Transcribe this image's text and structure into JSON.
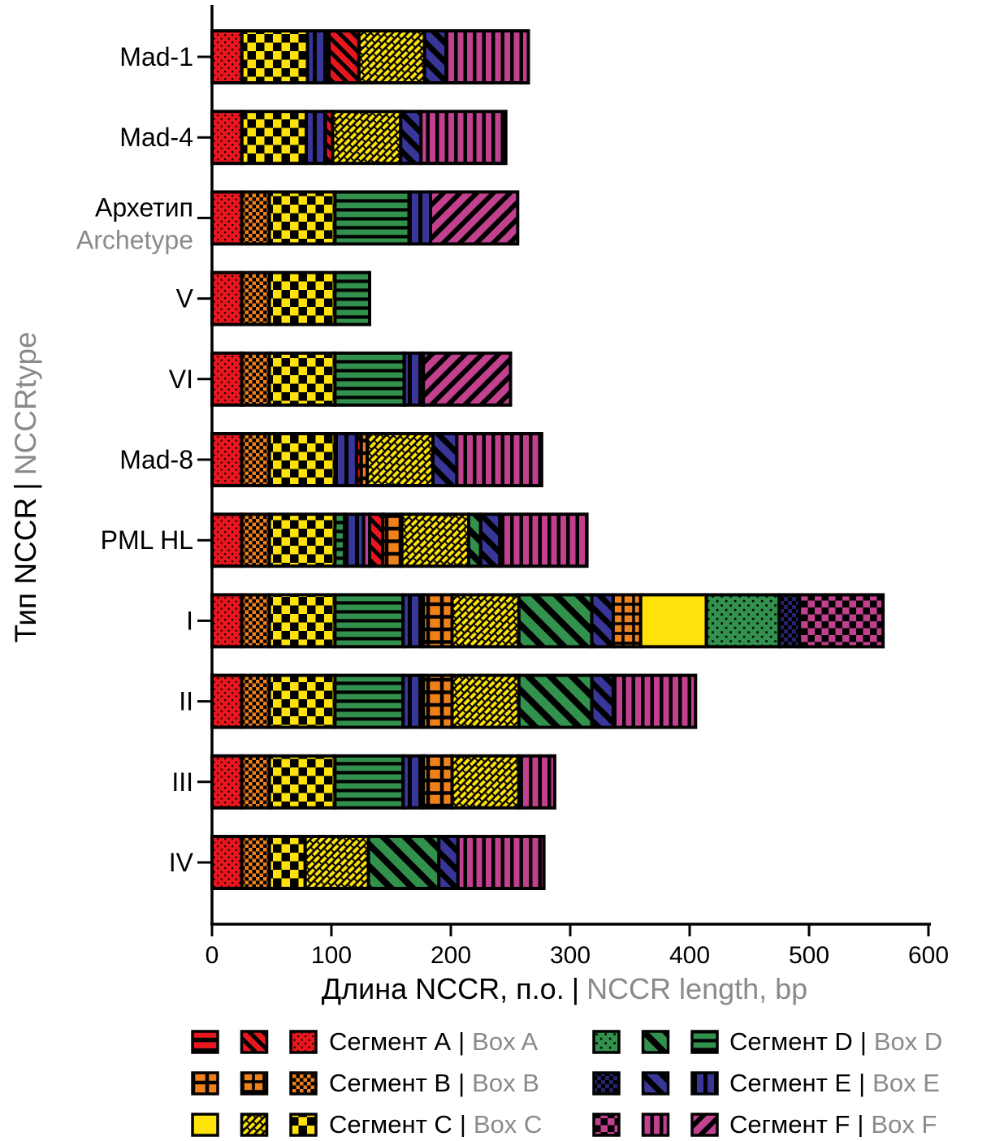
{
  "chart_data": {
    "type": "bar",
    "stacked": true,
    "orientation": "horizontal",
    "xlabel_ru": "Длина NCCR, п.о.",
    "xlabel_en": "NCCR length, bp",
    "ylabel_ru": "Тип NCCR",
    "ylabel_en": "NCCRtype",
    "sep": "|",
    "xlim": [
      0,
      600
    ],
    "xticks": [
      0,
      100,
      200,
      300,
      400,
      500,
      600
    ],
    "grid": false,
    "legend_position": "bottom",
    "boxes": {
      "A": {
        "label_ru": "Сегмент A",
        "label_en": "Box A",
        "color": "#e8161e",
        "legend_patterns": [
          "hstripes",
          "diag",
          "dots"
        ]
      },
      "B": {
        "label_ru": "Сегмент B",
        "label_en": "Box B",
        "color": "#f08019",
        "legend_patterns": [
          "grid",
          "grid2",
          "dense"
        ]
      },
      "C": {
        "label_ru": "Сегмент C",
        "label_en": "Box C",
        "color": "#ffe20a",
        "legend_patterns": [
          "plain",
          "bricks",
          "checker"
        ]
      },
      "D": {
        "label_ru": "Сегмент D",
        "label_en": "Box D",
        "color": "#33914e",
        "legend_patterns": [
          "dots",
          "diag",
          "hstripes"
        ]
      },
      "E": {
        "label_ru": "Сегмент E",
        "label_en": "Box E",
        "color": "#393699",
        "color_dark": "#23246b",
        "legend_patterns": [
          "checker",
          "diag",
          "vstripes"
        ]
      },
      "F": {
        "label_ru": "Сегмент F",
        "label_en": "Box F",
        "color": "#c2418f",
        "legend_patterns": [
          "checker",
          "vstripes",
          "diag"
        ]
      }
    },
    "rows": [
      {
        "label": "Mad-1",
        "total_bp": 265,
        "segments": [
          [
            "A",
            "dots",
            25
          ],
          [
            "C",
            "checker",
            55
          ],
          [
            "E",
            "vstripes",
            18
          ],
          [
            "A",
            "diag",
            25
          ],
          [
            "C",
            "bricks",
            55
          ],
          [
            "E",
            "diag",
            18
          ],
          [
            "F",
            "vstripes",
            69
          ]
        ]
      },
      {
        "label": "Mad-4",
        "total_bp": 246,
        "segments": [
          [
            "A",
            "dots",
            25
          ],
          [
            "C",
            "checker",
            54
          ],
          [
            "E",
            "vstripes",
            16
          ],
          [
            "A",
            "diag",
            6
          ],
          [
            "C",
            "bricks",
            57
          ],
          [
            "E",
            "diag",
            17
          ],
          [
            "F",
            "vstripes",
            71
          ]
        ]
      },
      {
        "label": "Архетип",
        "label_en": "Archetype",
        "total_bp": 256,
        "segments": [
          [
            "A",
            "dots",
            25
          ],
          [
            "B",
            "dense",
            23
          ],
          [
            "C",
            "checker",
            55
          ],
          [
            "D",
            "hstripes",
            62
          ],
          [
            "E",
            "vstripes",
            18
          ],
          [
            "F",
            "diag",
            73
          ]
        ]
      },
      {
        "label": "V",
        "total_bp": 132,
        "segments": [
          [
            "A",
            "dots",
            25
          ],
          [
            "B",
            "dense",
            23
          ],
          [
            "C",
            "checker",
            55
          ],
          [
            "D",
            "hstripes",
            29
          ]
        ]
      },
      {
        "label": "VI",
        "total_bp": 250,
        "segments": [
          [
            "A",
            "dots",
            25
          ],
          [
            "B",
            "dense",
            23
          ],
          [
            "C",
            "checker",
            55
          ],
          [
            "D",
            "hstripes",
            58
          ],
          [
            "E",
            "vstripes",
            16
          ],
          [
            "F",
            "diag",
            73
          ]
        ]
      },
      {
        "label": "Mad-8",
        "total_bp": 276,
        "segments": [
          [
            "A",
            "dots",
            25
          ],
          [
            "B",
            "dense",
            23
          ],
          [
            "C",
            "checker",
            55
          ],
          [
            "E",
            "vstripes",
            18
          ],
          [
            "A",
            "diag",
            4
          ],
          [
            "B",
            "grid",
            5
          ],
          [
            "C",
            "bricks",
            55
          ],
          [
            "E",
            "diag",
            20
          ],
          [
            "F",
            "vstripes",
            71
          ]
        ]
      },
      {
        "label": "PML HL",
        "total_bp": 314,
        "segments": [
          [
            "A",
            "dots",
            25
          ],
          [
            "B",
            "dense",
            23
          ],
          [
            "C",
            "checker",
            55
          ],
          [
            "D",
            "hstripes",
            8
          ],
          [
            "E",
            "vstripes",
            16
          ],
          [
            "F",
            "vstripes",
            5
          ],
          [
            "A",
            "diag",
            11
          ],
          [
            "B",
            "grid",
            16
          ],
          [
            "C",
            "bricks",
            56
          ],
          [
            "D",
            "diag",
            10
          ],
          [
            "E",
            "diag",
            16
          ],
          [
            "F",
            "vstripes",
            73
          ]
        ]
      },
      {
        "label": "I",
        "total_bp": 562,
        "segments": [
          [
            "A",
            "dots",
            25
          ],
          [
            "B",
            "dense",
            23
          ],
          [
            "C",
            "checker",
            55
          ],
          [
            "D",
            "hstripes",
            57
          ],
          [
            "E",
            "vstripes",
            17
          ],
          [
            "B",
            "grid",
            24
          ],
          [
            "C",
            "bricks",
            56
          ],
          [
            "D",
            "diag",
            61
          ],
          [
            "E",
            "diag",
            18
          ],
          [
            "B",
            "grid2",
            23
          ],
          [
            "C",
            "plain",
            55
          ],
          [
            "D",
            "dots",
            61
          ],
          [
            "E",
            "checker",
            17
          ],
          [
            "F",
            "checker",
            70
          ]
        ]
      },
      {
        "label": "II",
        "total_bp": 405,
        "segments": [
          [
            "A",
            "dots",
            25
          ],
          [
            "B",
            "dense",
            23
          ],
          [
            "C",
            "checker",
            55
          ],
          [
            "D",
            "hstripes",
            57
          ],
          [
            "E",
            "vstripes",
            17
          ],
          [
            "B",
            "grid",
            24
          ],
          [
            "C",
            "bricks",
            56
          ],
          [
            "D",
            "diag",
            61
          ],
          [
            "E",
            "diag",
            18
          ],
          [
            "F",
            "vstripes",
            69
          ]
        ]
      },
      {
        "label": "III",
        "total_bp": 287,
        "segments": [
          [
            "A",
            "dots",
            25
          ],
          [
            "B",
            "dense",
            23
          ],
          [
            "C",
            "checker",
            55
          ],
          [
            "D",
            "hstripes",
            57
          ],
          [
            "E",
            "vstripes",
            17
          ],
          [
            "B",
            "grid",
            24
          ],
          [
            "C",
            "bricks",
            56
          ],
          [
            "F",
            "vstripes",
            30
          ]
        ]
      },
      {
        "label": "IV",
        "total_bp": 278,
        "segments": [
          [
            "A",
            "dots",
            25
          ],
          [
            "B",
            "dense",
            23
          ],
          [
            "C",
            "checker",
            30
          ],
          [
            "C",
            "bricks",
            53
          ],
          [
            "D",
            "diag",
            59
          ],
          [
            "E",
            "diag",
            16
          ],
          [
            "F",
            "vstripes",
            72
          ]
        ]
      }
    ]
  },
  "colors": {
    "text": "#000000",
    "secondary_text": "#8a8a8a",
    "axis": "#000000",
    "background": "#ffffff"
  }
}
